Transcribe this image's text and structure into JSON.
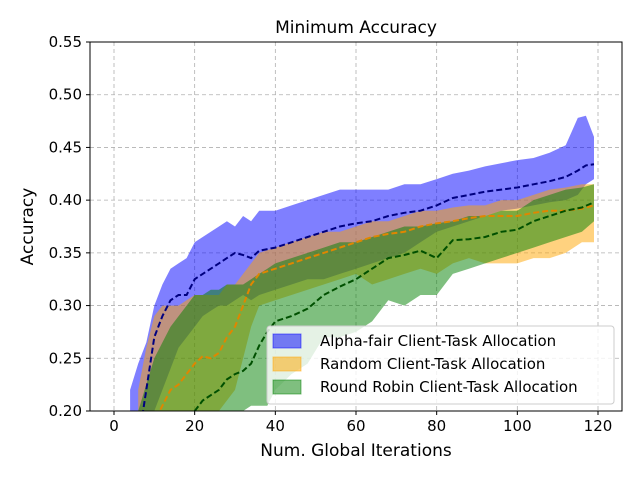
{
  "chart_data": {
    "type": "area",
    "title": "Minimum Accuracy",
    "xlabel": "Num. Global Iterations",
    "ylabel": "Accuracy",
    "xlim": [
      -5.95,
      125.95
    ],
    "ylim": [
      0.2,
      0.55
    ],
    "x_ticks": [
      0,
      20,
      40,
      60,
      80,
      100,
      120
    ],
    "y_ticks": [
      0.2,
      0.25,
      0.3,
      0.35,
      0.4,
      0.45,
      0.5,
      0.55
    ],
    "grid": true,
    "legend_position": "lower-right",
    "series": [
      {
        "name": "Alpha-fair Client-Task Allocation",
        "fill_color": "#0000ff",
        "mean_color": "#000080",
        "points": [
          [
            4,
            null,
            0.22,
            0.16
          ],
          [
            6,
            0.17,
            0.245,
            0.12
          ],
          [
            8,
            0.22,
            0.265,
            0.15
          ],
          [
            10,
            0.27,
            0.3,
            0.2
          ],
          [
            12,
            0.29,
            0.32,
            0.22
          ],
          [
            14,
            0.305,
            0.335,
            0.24
          ],
          [
            16,
            0.31,
            0.34,
            0.26
          ],
          [
            18,
            0.31,
            0.345,
            0.27
          ],
          [
            20,
            0.325,
            0.36,
            0.28
          ],
          [
            22,
            0.33,
            0.365,
            0.29
          ],
          [
            24,
            0.335,
            0.37,
            0.295
          ],
          [
            26,
            0.34,
            0.375,
            0.3
          ],
          [
            28,
            0.345,
            0.38,
            0.3
          ],
          [
            30,
            0.35,
            0.375,
            0.305
          ],
          [
            32,
            0.348,
            0.385,
            0.31
          ],
          [
            34,
            0.345,
            0.38,
            0.305
          ],
          [
            36,
            0.352,
            0.39,
            0.31
          ],
          [
            40,
            0.355,
            0.39,
            0.315
          ],
          [
            44,
            0.36,
            0.395,
            0.32
          ],
          [
            48,
            0.365,
            0.4,
            0.325
          ],
          [
            52,
            0.37,
            0.405,
            0.325
          ],
          [
            56,
            0.375,
            0.41,
            0.33
          ],
          [
            60,
            0.378,
            0.41,
            0.335
          ],
          [
            64,
            0.38,
            0.41,
            0.34
          ],
          [
            68,
            0.385,
            0.41,
            0.345
          ],
          [
            72,
            0.388,
            0.415,
            0.35
          ],
          [
            76,
            0.39,
            0.415,
            0.36
          ],
          [
            80,
            0.395,
            0.42,
            0.37
          ],
          [
            84,
            0.402,
            0.425,
            0.375
          ],
          [
            88,
            0.405,
            0.428,
            0.38
          ],
          [
            92,
            0.408,
            0.432,
            0.385
          ],
          [
            96,
            0.41,
            0.435,
            0.39
          ],
          [
            100,
            0.412,
            0.438,
            0.392
          ],
          [
            104,
            0.415,
            0.44,
            0.395
          ],
          [
            108,
            0.418,
            0.445,
            0.398
          ],
          [
            112,
            0.422,
            0.452,
            0.4
          ],
          [
            115,
            0.428,
            0.478,
            0.405
          ],
          [
            117,
            0.433,
            0.48,
            0.415
          ],
          [
            119,
            0.434,
            0.46,
            0.42
          ]
        ]
      },
      {
        "name": "Random Client-Task Allocation",
        "fill_color": "#ffa500",
        "mean_color": "#e08600",
        "points": [
          [
            6,
            null,
            0.22,
            0.15
          ],
          [
            8,
            0.17,
            0.26,
            0.15
          ],
          [
            10,
            0.19,
            0.29,
            0.15
          ],
          [
            12,
            0.205,
            0.3,
            0.15
          ],
          [
            14,
            0.22,
            0.3,
            0.15
          ],
          [
            16,
            0.225,
            0.3,
            0.15
          ],
          [
            18,
            0.235,
            0.305,
            0.16
          ],
          [
            20,
            0.245,
            0.31,
            0.17
          ],
          [
            22,
            0.252,
            0.31,
            0.18
          ],
          [
            24,
            0.25,
            0.31,
            0.19
          ],
          [
            26,
            0.255,
            0.31,
            0.2
          ],
          [
            28,
            0.27,
            0.32,
            0.21
          ],
          [
            30,
            0.28,
            0.32,
            0.22
          ],
          [
            32,
            0.3,
            0.33,
            0.25
          ],
          [
            34,
            0.32,
            0.34,
            0.28
          ],
          [
            36,
            0.33,
            0.35,
            0.3
          ],
          [
            40,
            0.335,
            0.355,
            0.305
          ],
          [
            44,
            0.34,
            0.36,
            0.31
          ],
          [
            48,
            0.345,
            0.365,
            0.315
          ],
          [
            52,
            0.35,
            0.37,
            0.32
          ],
          [
            56,
            0.355,
            0.37,
            0.325
          ],
          [
            60,
            0.36,
            0.375,
            0.33
          ],
          [
            64,
            0.365,
            0.38,
            0.32
          ],
          [
            68,
            0.368,
            0.38,
            0.325
          ],
          [
            72,
            0.37,
            0.385,
            0.33
          ],
          [
            76,
            0.375,
            0.39,
            0.335
          ],
          [
            80,
            0.378,
            0.39,
            0.33
          ],
          [
            84,
            0.38,
            0.393,
            0.34
          ],
          [
            88,
            0.383,
            0.395,
            0.345
          ],
          [
            92,
            0.385,
            0.395,
            0.34
          ],
          [
            96,
            0.385,
            0.4,
            0.34
          ],
          [
            100,
            0.385,
            0.4,
            0.34
          ],
          [
            104,
            0.388,
            0.405,
            0.345
          ],
          [
            108,
            0.39,
            0.41,
            0.345
          ],
          [
            112,
            0.39,
            0.412,
            0.35
          ],
          [
            116,
            0.392,
            0.415,
            0.36
          ],
          [
            119,
            0.395,
            0.415,
            0.36
          ]
        ]
      },
      {
        "name": "Round Robin Client-Task Allocation",
        "fill_color": "#008000",
        "mean_color": "#005000",
        "points": [
          [
            6,
            null,
            0.2,
            0.15
          ],
          [
            10,
            null,
            0.25,
            0.15
          ],
          [
            14,
            null,
            0.28,
            0.15
          ],
          [
            18,
            null,
            0.3,
            0.15
          ],
          [
            20,
            0.2,
            0.31,
            0.15
          ],
          [
            22,
            0.21,
            0.31,
            0.15
          ],
          [
            24,
            0.215,
            0.315,
            0.15
          ],
          [
            26,
            0.22,
            0.315,
            0.15
          ],
          [
            28,
            0.23,
            0.32,
            0.15
          ],
          [
            30,
            0.235,
            0.32,
            0.15
          ],
          [
            32,
            0.238,
            0.32,
            0.2
          ],
          [
            34,
            0.245,
            0.325,
            0.205
          ],
          [
            36,
            0.262,
            0.33,
            0.205
          ],
          [
            38,
            0.275,
            0.335,
            0.205
          ],
          [
            40,
            0.285,
            0.34,
            0.22
          ],
          [
            44,
            0.29,
            0.345,
            0.235
          ],
          [
            48,
            0.297,
            0.35,
            0.245
          ],
          [
            52,
            0.31,
            0.355,
            0.27
          ],
          [
            56,
            0.318,
            0.36,
            0.27
          ],
          [
            60,
            0.325,
            0.36,
            0.275
          ],
          [
            64,
            0.335,
            0.365,
            0.285
          ],
          [
            68,
            0.345,
            0.37,
            0.305
          ],
          [
            72,
            0.348,
            0.375,
            0.3
          ],
          [
            76,
            0.352,
            0.375,
            0.31
          ],
          [
            80,
            0.345,
            0.378,
            0.31
          ],
          [
            84,
            0.362,
            0.38,
            0.33
          ],
          [
            88,
            0.363,
            0.385,
            0.335
          ],
          [
            92,
            0.365,
            0.385,
            0.34
          ],
          [
            96,
            0.37,
            0.39,
            0.345
          ],
          [
            100,
            0.372,
            0.39,
            0.35
          ],
          [
            104,
            0.38,
            0.4,
            0.355
          ],
          [
            108,
            0.385,
            0.405,
            0.36
          ],
          [
            112,
            0.39,
            0.41,
            0.365
          ],
          [
            116,
            0.393,
            0.412,
            0.37
          ],
          [
            119,
            0.398,
            0.415,
            0.38
          ]
        ]
      }
    ]
  }
}
